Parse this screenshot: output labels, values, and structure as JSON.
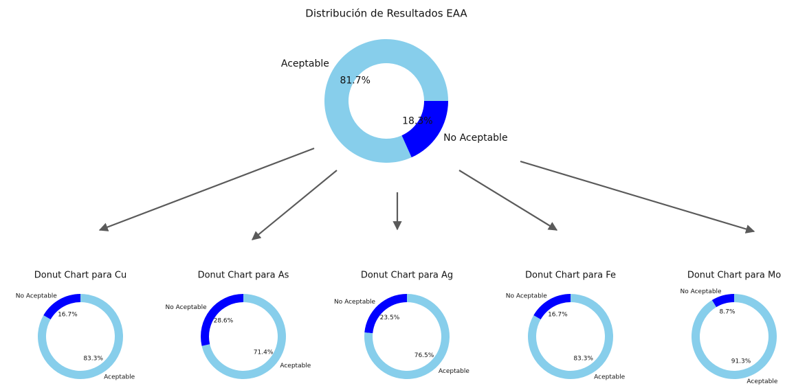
{
  "chart_data": [
    {
      "type": "pie",
      "title": "Distribución de Resultados EAA",
      "categories": [
        "Aceptable",
        "No Aceptable"
      ],
      "values": [
        81.7,
        18.3
      ],
      "value_labels": [
        "81.7%",
        "18.3%"
      ],
      "colors": [
        "#87ceeb",
        "#0000ff"
      ],
      "startangle": 0,
      "counterclockwise": true
    },
    {
      "type": "pie",
      "title": "Donut Chart para Cu",
      "categories": [
        "No Aceptable",
        "Aceptable"
      ],
      "values": [
        16.7,
        83.3
      ],
      "value_labels": [
        "16.7%",
        "83.3%"
      ],
      "colors": [
        "#0000ff",
        "#87ceeb"
      ],
      "startangle": 90,
      "counterclockwise": true
    },
    {
      "type": "pie",
      "title": "Donut Chart para As",
      "categories": [
        "No Aceptable",
        "Aceptable"
      ],
      "values": [
        28.6,
        71.4
      ],
      "value_labels": [
        "28.6%",
        "71.4%"
      ],
      "colors": [
        "#0000ff",
        "#87ceeb"
      ],
      "startangle": 90,
      "counterclockwise": true
    },
    {
      "type": "pie",
      "title": "Donut Chart para Ag",
      "categories": [
        "No Aceptable",
        "Aceptable"
      ],
      "values": [
        23.5,
        76.5
      ],
      "value_labels": [
        "23.5%",
        "76.5%"
      ],
      "colors": [
        "#0000ff",
        "#87ceeb"
      ],
      "startangle": 90,
      "counterclockwise": true
    },
    {
      "type": "pie",
      "title": "Donut Chart para Fe",
      "categories": [
        "No Aceptable",
        "Aceptable"
      ],
      "values": [
        16.7,
        83.3
      ],
      "value_labels": [
        "16.7%",
        "83.3%"
      ],
      "colors": [
        "#0000ff",
        "#87ceeb"
      ],
      "startangle": 90,
      "counterclockwise": true
    },
    {
      "type": "pie",
      "title": "Donut Chart para Mo",
      "categories": [
        "No Aceptable",
        "Aceptable"
      ],
      "values": [
        8.7,
        91.3
      ],
      "value_labels": [
        "8.7%",
        "91.3%"
      ],
      "colors": [
        "#0000ff",
        "#87ceeb"
      ],
      "startangle": 90,
      "counterclockwise": true
    }
  ]
}
